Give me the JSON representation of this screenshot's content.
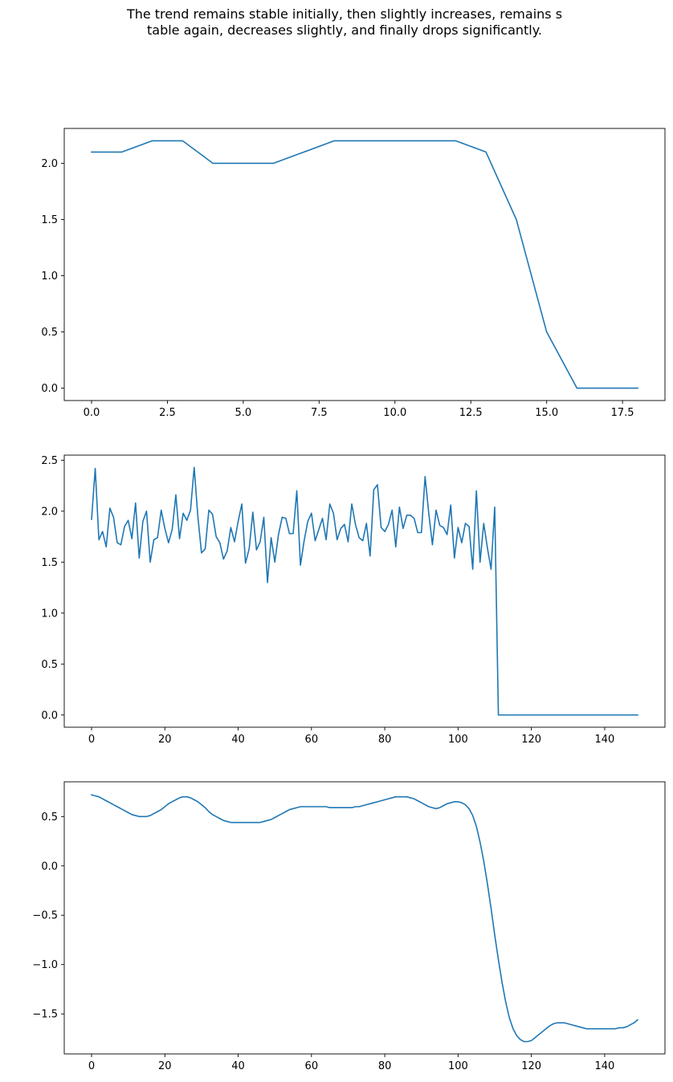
{
  "title_lines": [
    "The trend remains stable initially, then slightly increases, remains s",
    "table again, decreases slightly, and finally drops significantly."
  ],
  "colors": {
    "line": "#1f77b4",
    "axes": "#000000"
  },
  "chart_data": [
    {
      "type": "line",
      "x_start": 0,
      "x_step": 1,
      "values": [
        2.1,
        2.1,
        2.2,
        2.2,
        2.0,
        2.0,
        2.0,
        2.1,
        2.2,
        2.2,
        2.2,
        2.2,
        2.2,
        2.1,
        1.5,
        0.5,
        0.0,
        0.0,
        0.0
      ],
      "xlim": [
        -0.9,
        18.9
      ],
      "ylim": [
        -0.11,
        2.31
      ],
      "xticks": [
        "0.0",
        "2.5",
        "5.0",
        "7.5",
        "10.0",
        "12.5",
        "15.0",
        "17.5"
      ],
      "yticks": [
        "0.0",
        "0.5",
        "1.0",
        "1.5",
        "2.0"
      ],
      "grid": false
    },
    {
      "type": "line",
      "x_start": 0,
      "x_step": 1,
      "values": [
        1.92,
        2.42,
        1.72,
        1.8,
        1.65,
        2.03,
        1.94,
        1.69,
        1.67,
        1.85,
        1.91,
        1.73,
        2.08,
        1.54,
        1.9,
        2.0,
        1.5,
        1.72,
        1.74,
        2.01,
        1.83,
        1.69,
        1.82,
        2.16,
        1.73,
        1.98,
        1.91,
        2.01,
        2.43,
        1.95,
        1.59,
        1.63,
        2.01,
        1.97,
        1.75,
        1.69,
        1.53,
        1.61,
        1.84,
        1.7,
        1.9,
        2.07,
        1.49,
        1.63,
        1.99,
        1.62,
        1.7,
        1.94,
        1.3,
        1.74,
        1.5,
        1.77,
        1.94,
        1.93,
        1.78,
        1.78,
        2.2,
        1.47,
        1.71,
        1.9,
        1.98,
        1.71,
        1.82,
        1.93,
        1.72,
        2.07,
        1.98,
        1.72,
        1.83,
        1.87,
        1.7,
        2.07,
        1.87,
        1.74,
        1.71,
        1.88,
        1.56,
        2.21,
        2.26,
        1.84,
        1.8,
        1.87,
        2.01,
        1.65,
        2.04,
        1.83,
        1.96,
        1.96,
        1.93,
        1.79,
        1.79,
        2.34,
        1.98,
        1.67,
        2.01,
        1.86,
        1.84,
        1.77,
        2.06,
        1.54,
        1.84,
        1.69,
        1.88,
        1.85,
        1.43,
        2.2,
        1.5,
        1.88,
        1.64,
        1.43,
        2.04,
        0.0,
        0.0,
        0.0,
        0.0,
        0.0,
        0.0,
        0.0,
        0.0,
        0.0,
        0.0,
        0.0,
        0.0,
        0.0,
        0.0,
        0.0,
        0.0,
        0.0,
        0.0,
        0.0,
        0.0,
        0.0,
        0.0,
        0.0,
        0.0,
        0.0,
        0.0,
        0.0,
        0.0,
        0.0,
        0.0,
        0.0,
        0.0,
        0.0,
        0.0,
        0.0,
        0.0,
        0.0,
        0.0,
        0.0
      ],
      "xlim": [
        -7.45,
        156.45
      ],
      "ylim": [
        -0.12,
        2.55
      ],
      "xticks": [
        "0",
        "20",
        "40",
        "60",
        "80",
        "100",
        "120",
        "140"
      ],
      "yticks": [
        "0.0",
        "0.5",
        "1.0",
        "1.5",
        "2.0",
        "2.5"
      ],
      "grid": false
    },
    {
      "type": "line",
      "x_start": 0,
      "x_step": 1,
      "values": [
        0.72,
        0.71,
        0.7,
        0.68,
        0.66,
        0.64,
        0.62,
        0.6,
        0.58,
        0.56,
        0.54,
        0.52,
        0.51,
        0.5,
        0.5,
        0.5,
        0.51,
        0.53,
        0.55,
        0.57,
        0.6,
        0.63,
        0.65,
        0.67,
        0.69,
        0.7,
        0.7,
        0.69,
        0.67,
        0.65,
        0.62,
        0.59,
        0.55,
        0.52,
        0.5,
        0.48,
        0.46,
        0.45,
        0.44,
        0.44,
        0.44,
        0.44,
        0.44,
        0.44,
        0.44,
        0.44,
        0.44,
        0.45,
        0.46,
        0.47,
        0.49,
        0.51,
        0.53,
        0.55,
        0.57,
        0.58,
        0.59,
        0.6,
        0.6,
        0.6,
        0.6,
        0.6,
        0.6,
        0.6,
        0.6,
        0.59,
        0.59,
        0.59,
        0.59,
        0.59,
        0.59,
        0.59,
        0.6,
        0.6,
        0.61,
        0.62,
        0.63,
        0.64,
        0.65,
        0.66,
        0.67,
        0.68,
        0.69,
        0.7,
        0.7,
        0.7,
        0.7,
        0.69,
        0.68,
        0.66,
        0.64,
        0.62,
        0.6,
        0.59,
        0.58,
        0.59,
        0.61,
        0.63,
        0.64,
        0.65,
        0.65,
        0.64,
        0.62,
        0.58,
        0.51,
        0.4,
        0.24,
        0.05,
        -0.18,
        -0.43,
        -0.7,
        -0.95,
        -1.18,
        -1.38,
        -1.54,
        -1.65,
        -1.72,
        -1.76,
        -1.78,
        -1.78,
        -1.77,
        -1.74,
        -1.71,
        -1.68,
        -1.65,
        -1.62,
        -1.6,
        -1.59,
        -1.59,
        -1.59,
        -1.6,
        -1.61,
        -1.62,
        -1.63,
        -1.64,
        -1.65,
        -1.65,
        -1.65,
        -1.65,
        -1.65,
        -1.65,
        -1.65,
        -1.65,
        -1.65,
        -1.64,
        -1.64,
        -1.63,
        -1.61,
        -1.59,
        -1.56
      ],
      "xlim": [
        -7.45,
        156.45
      ],
      "ylim": [
        -1.905,
        0.852
      ],
      "xticks": [
        "0",
        "20",
        "40",
        "60",
        "80",
        "100",
        "120",
        "140"
      ],
      "yticks": [
        "−1.5",
        "−1.0",
        "−0.5",
        "0.0",
        "0.5"
      ],
      "grid": false
    }
  ]
}
